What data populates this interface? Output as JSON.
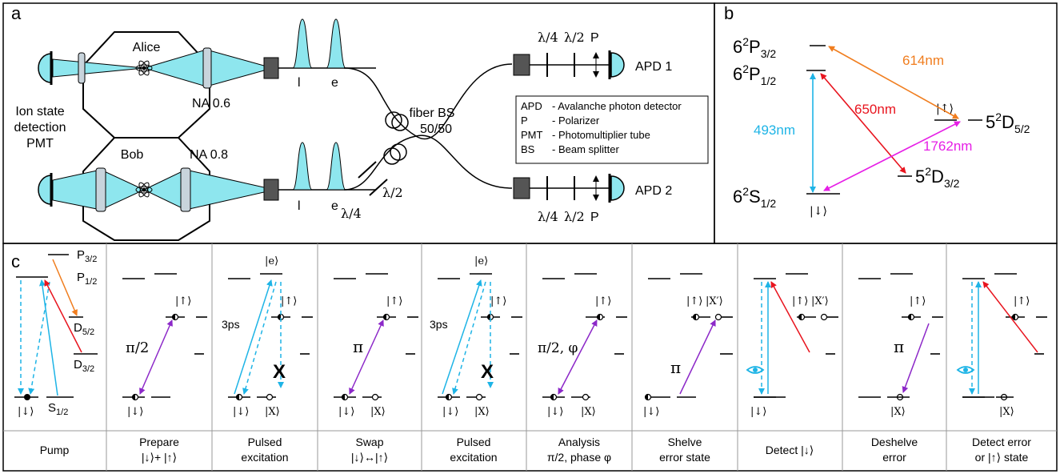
{
  "panel_labels": {
    "a": "a",
    "b": "b",
    "c": "c"
  },
  "panel_a": {
    "alice": "Alice",
    "bob": "Bob",
    "na_alice": "NA 0.6",
    "na_bob": "NA 0.8",
    "pmt_lines": [
      "Ion state",
      "detection",
      "PMT"
    ],
    "pulse_l": "l",
    "pulse_e": "e",
    "fiber_bs_lines": [
      "fiber BS",
      "50/50"
    ],
    "lambda4": "λ/4",
    "lambda2": "λ/2",
    "polarizer": "P",
    "apd1": "APD 1",
    "apd2": "APD 2",
    "legend": [
      {
        "key": "APD",
        "desc": "- Avalanche photon detector"
      },
      {
        "key": "P",
        "desc": "- Polarizer"
      },
      {
        "key": "PMT",
        "desc": "- Photomultiplier tube"
      },
      {
        "key": "BS",
        "desc": "- Beam splitter"
      }
    ]
  },
  "panel_b": {
    "levels": {
      "p32": {
        "base": "6",
        "sup": "2",
        "mid": "P",
        "sub": "3/2"
      },
      "p12": {
        "base": "6",
        "sup": "2",
        "mid": "P",
        "sub": "1/2"
      },
      "s12": {
        "base": "6",
        "sup": "2",
        "mid": "S",
        "sub": "1/2"
      },
      "d52": {
        "base": "5",
        "sup": "2",
        "mid": "D",
        "sub": "5/2"
      },
      "d32": {
        "base": "5",
        "sup": "2",
        "mid": "D",
        "sub": "3/2"
      }
    },
    "ket_down": "|↓⟩",
    "ket_up": "|↑⟩",
    "transitions": [
      {
        "label": "614nm",
        "color": "#f07d1e"
      },
      {
        "label": "650nm",
        "color": "#e8141e"
      },
      {
        "label": "493nm",
        "color": "#1eb4e6"
      },
      {
        "label": "1762nm",
        "color": "#e61ee6"
      }
    ]
  },
  "panel_c": {
    "pump_labels": {
      "p32": "P",
      "p32_sub": "3/2",
      "p12": "P",
      "p12_sub": "1/2",
      "d52": "D",
      "d52_sub": "5/2",
      "d32": "D",
      "d32_sub": "3/2",
      "s12": "S",
      "s12_sub": "1/2",
      "down": "|↓⟩"
    },
    "ket_down": "|↓⟩",
    "ket_up": "|↑⟩",
    "ket_x": "|X⟩",
    "ket_xp": "|X′⟩",
    "ket_e": "|e⟩",
    "pi2": "π/2",
    "pi": "π",
    "pi2phi": "π/2, φ",
    "three_ps": "3ps",
    "cross": "X",
    "steps": [
      {
        "lines": [
          "Pump"
        ]
      },
      {
        "lines": [
          "Prepare",
          "|↓⟩+ |↑⟩"
        ]
      },
      {
        "lines": [
          "Pulsed",
          "excitation"
        ]
      },
      {
        "lines": [
          "Swap",
          "|↓⟩↔|↑⟩"
        ]
      },
      {
        "lines": [
          "Pulsed",
          "excitation"
        ]
      },
      {
        "lines": [
          "Analysis",
          "π/2, phase φ"
        ]
      },
      {
        "lines": [
          "Shelve",
          "error state"
        ]
      },
      {
        "lines": [
          "Detect  |↓⟩"
        ]
      },
      {
        "lines": [
          "Deshelve",
          "error"
        ]
      },
      {
        "lines": [
          "Detect error",
          "or |↑⟩ state"
        ]
      }
    ]
  },
  "colors": {
    "cyan": "#1eb4e6",
    "cyan_fill": "#8ee6ee",
    "red": "#e8141e",
    "orange": "#f07d1e",
    "magenta": "#e61ee6",
    "purple": "#8c28c8"
  }
}
